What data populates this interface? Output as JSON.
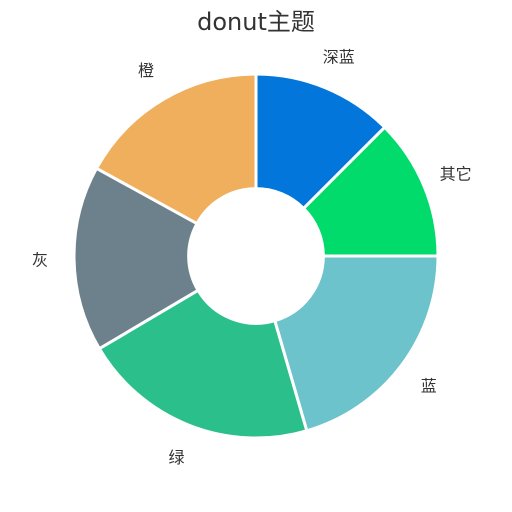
{
  "chart_data": {
    "type": "pie",
    "title": "donut主题",
    "donut": true,
    "start_angle_deg": 90,
    "direction": "clockwise",
    "inner_radius_ratio": 0.37,
    "slice_border_color": "#ffffff",
    "slices": [
      {
        "label": "深蓝",
        "value": 12.5,
        "color": "#0376db"
      },
      {
        "label": "其它",
        "value": 12.5,
        "color": "#00db6b"
      },
      {
        "label": "蓝",
        "value": 20.5,
        "color": "#6cc3cb"
      },
      {
        "label": "绿",
        "value": 21.0,
        "color": "#2bc08b"
      },
      {
        "label": "灰",
        "value": 16.5,
        "color": "#6d818c"
      },
      {
        "label": "橙",
        "value": 17.0,
        "color": "#f0af5d"
      }
    ]
  }
}
